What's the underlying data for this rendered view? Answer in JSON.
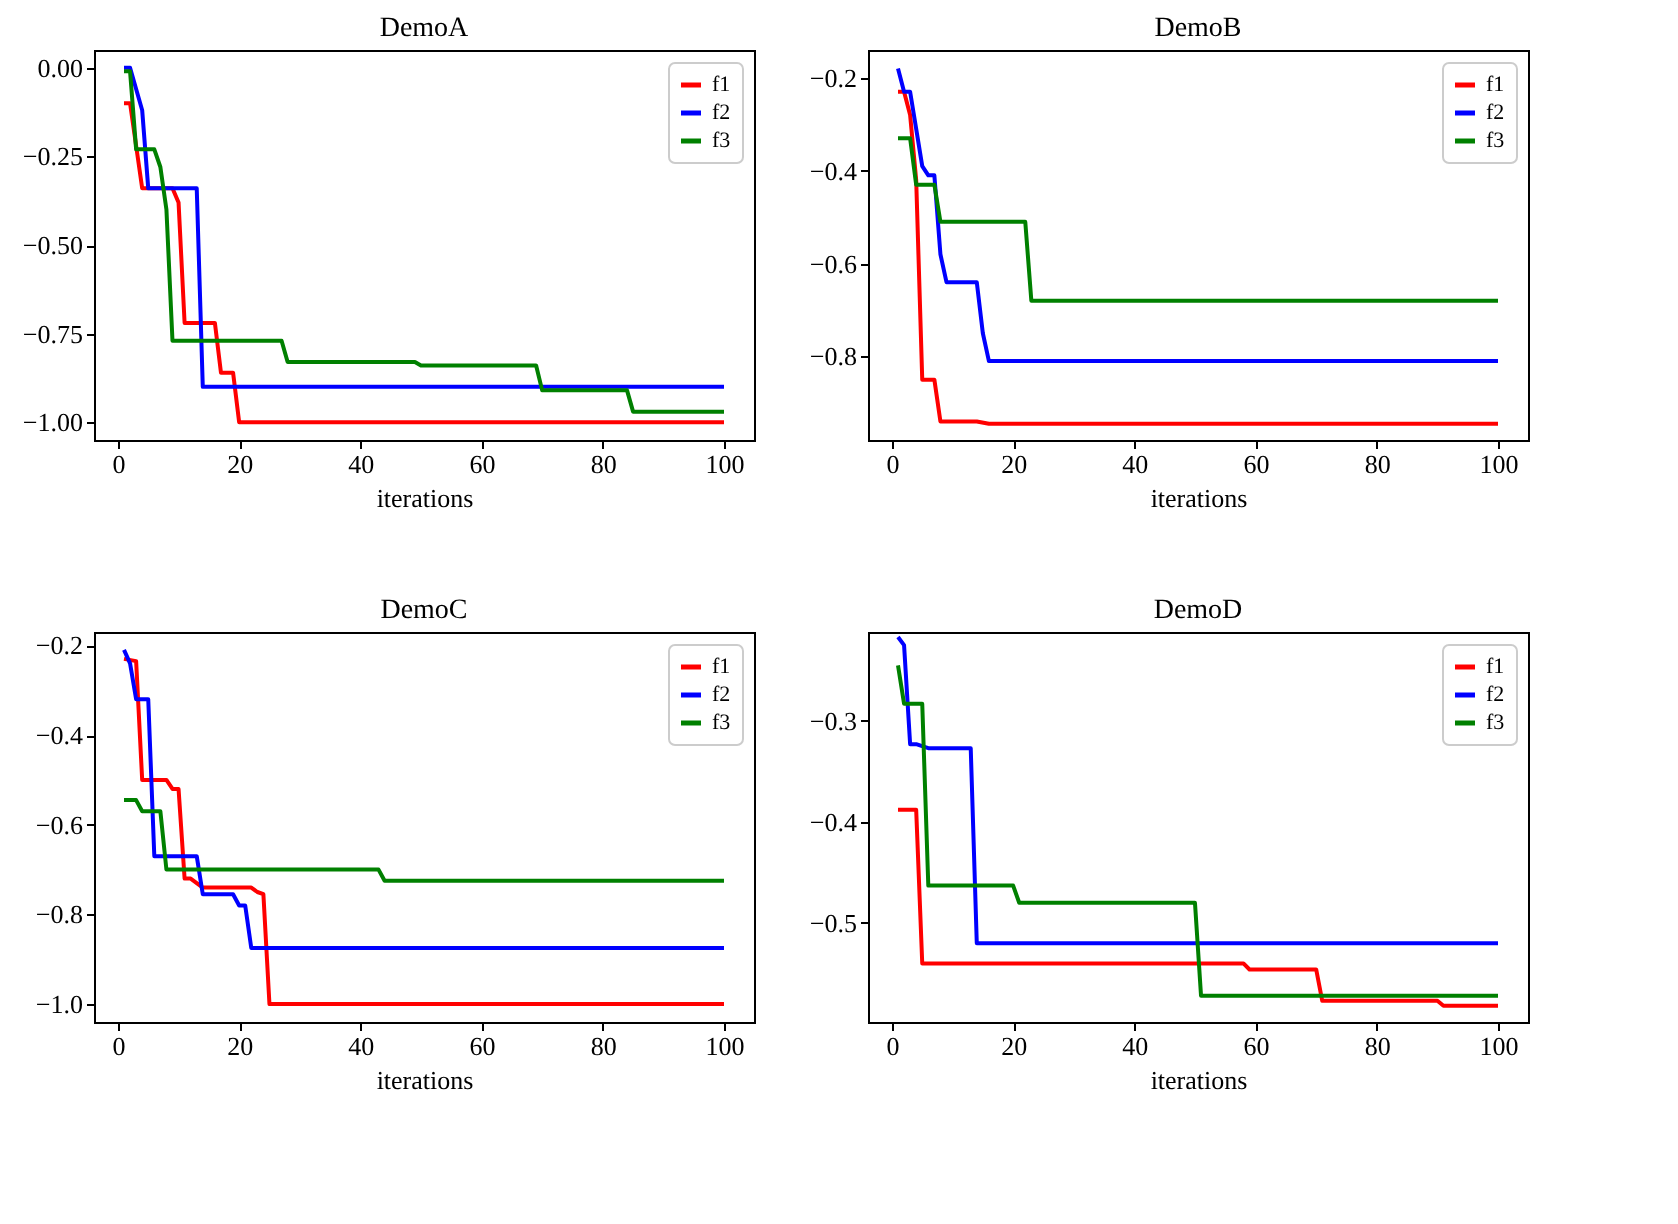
{
  "chart_data": [
    {
      "type": "line",
      "title": "DemoA",
      "xlabel": "iterations",
      "xlim": [
        -3.95,
        104.95
      ],
      "xticks": [
        0,
        20,
        40,
        60,
        80,
        100
      ],
      "ylim": [
        -1.05,
        0.05
      ],
      "yticks": [
        {
          "value": 0,
          "label": "0.00"
        },
        {
          "value": -0.25,
          "label": "−0.25"
        },
        {
          "value": -0.5,
          "label": "−0.50"
        },
        {
          "value": -0.75,
          "label": "−0.75"
        },
        {
          "value": -1,
          "label": "−1.00"
        }
      ],
      "grid": false,
      "legend": "top right",
      "marker": "none",
      "line_style": "solid",
      "series": [
        {
          "name": "f1",
          "color": "#ff0000",
          "x": [
            1,
            2,
            4,
            9,
            10,
            11,
            16,
            17,
            19,
            20,
            100
          ],
          "values": [
            -0.1,
            -0.1,
            -0.34,
            -0.34,
            -0.38,
            -0.72,
            -0.72,
            -0.86,
            -0.86,
            -1.0,
            -1.0
          ]
        },
        {
          "name": "f2",
          "color": "#0000ff",
          "x": [
            1,
            2,
            4,
            5,
            13,
            14,
            100
          ],
          "values": [
            0,
            0,
            -0.12,
            -0.34,
            -0.34,
            -0.9,
            -0.9
          ]
        },
        {
          "name": "f3",
          "color": "#008000",
          "x": [
            1,
            2,
            3,
            6,
            7,
            8,
            9,
            27,
            28,
            49,
            50,
            69,
            70,
            84,
            85,
            100
          ],
          "values": [
            -0.01,
            -0.01,
            -0.23,
            -0.23,
            -0.28,
            -0.4,
            -0.77,
            -0.77,
            -0.83,
            -0.83,
            -0.84,
            -0.84,
            -0.91,
            -0.91,
            -0.97,
            -0.97
          ]
        }
      ]
    },
    {
      "type": "line",
      "title": "DemoB",
      "xlabel": "iterations",
      "xlim": [
        -3.95,
        104.95
      ],
      "xticks": [
        0,
        20,
        40,
        60,
        80,
        100
      ],
      "ylim": [
        -0.98,
        -0.14
      ],
      "yticks": [
        {
          "value": -0.2,
          "label": "−0.2"
        },
        {
          "value": -0.4,
          "label": "−0.4"
        },
        {
          "value": -0.6,
          "label": "−0.6"
        },
        {
          "value": -0.8,
          "label": "−0.8"
        }
      ],
      "grid": false,
      "legend": "top right",
      "marker": "none",
      "line_style": "solid",
      "series": [
        {
          "name": "f1",
          "color": "#ff0000",
          "x": [
            1,
            2,
            3,
            4,
            5,
            7,
            8,
            14,
            16,
            100
          ],
          "values": [
            -0.23,
            -0.23,
            -0.28,
            -0.42,
            -0.85,
            -0.85,
            -0.94,
            -0.94,
            -0.945,
            -0.945
          ]
        },
        {
          "name": "f2",
          "color": "#0000ff",
          "x": [
            1,
            2,
            3,
            4,
            5,
            6,
            7,
            8,
            9,
            14,
            15,
            16,
            100
          ],
          "values": [
            -0.18,
            -0.23,
            -0.23,
            -0.31,
            -0.39,
            -0.41,
            -0.41,
            -0.58,
            -0.64,
            -0.64,
            -0.75,
            -0.81,
            -0.81
          ]
        },
        {
          "name": "f3",
          "color": "#008000",
          "x": [
            1,
            3,
            4,
            7,
            8,
            22,
            23,
            100
          ],
          "values": [
            -0.33,
            -0.33,
            -0.43,
            -0.43,
            -0.51,
            -0.51,
            -0.68,
            -0.68
          ]
        }
      ]
    },
    {
      "type": "line",
      "title": "DemoC",
      "xlabel": "iterations",
      "xlim": [
        -3.95,
        104.95
      ],
      "xticks": [
        0,
        20,
        40,
        60,
        80,
        100
      ],
      "ylim": [
        -1.04,
        -0.17
      ],
      "yticks": [
        {
          "value": -0.2,
          "label": "−0.2"
        },
        {
          "value": -0.4,
          "label": "−0.4"
        },
        {
          "value": -0.6,
          "label": "−0.6"
        },
        {
          "value": -0.8,
          "label": "−0.8"
        },
        {
          "value": -1,
          "label": "−1.0"
        }
      ],
      "grid": false,
      "legend": "top right",
      "marker": "none",
      "line_style": "solid",
      "series": [
        {
          "name": "f1",
          "color": "#ff0000",
          "x": [
            1,
            3,
            4,
            8,
            9,
            10,
            11,
            12,
            14,
            22,
            23,
            24,
            25,
            100
          ],
          "values": [
            -0.23,
            -0.235,
            -0.5,
            -0.5,
            -0.52,
            -0.52,
            -0.72,
            -0.72,
            -0.74,
            -0.74,
            -0.75,
            -0.755,
            -1.0,
            -1.0
          ]
        },
        {
          "name": "f2",
          "color": "#0000ff",
          "x": [
            1,
            2,
            3,
            5,
            6,
            13,
            14,
            19,
            20,
            21,
            22,
            100
          ],
          "values": [
            -0.21,
            -0.24,
            -0.32,
            -0.32,
            -0.67,
            -0.67,
            -0.755,
            -0.755,
            -0.78,
            -0.78,
            -0.875,
            -0.875
          ]
        },
        {
          "name": "f3",
          "color": "#008000",
          "x": [
            1,
            3,
            4,
            7,
            8,
            43,
            44,
            100
          ],
          "values": [
            -0.545,
            -0.545,
            -0.57,
            -0.57,
            -0.7,
            -0.7,
            -0.725,
            -0.725
          ]
        }
      ]
    },
    {
      "type": "line",
      "title": "DemoD",
      "xlabel": "iterations",
      "xlim": [
        -3.95,
        104.95
      ],
      "xticks": [
        0,
        20,
        40,
        60,
        80,
        100
      ],
      "ylim": [
        -0.598,
        -0.212
      ],
      "yticks": [
        {
          "value": -0.3,
          "label": "−0.3"
        },
        {
          "value": -0.4,
          "label": "−0.4"
        },
        {
          "value": -0.5,
          "label": "−0.5"
        }
      ],
      "grid": false,
      "legend": "top right",
      "marker": "none",
      "line_style": "solid",
      "series": [
        {
          "name": "f1",
          "color": "#ff0000",
          "x": [
            1,
            4,
            5,
            58,
            59,
            70,
            71,
            90,
            91,
            100
          ],
          "values": [
            -0.388,
            -0.388,
            -0.54,
            -0.54,
            -0.546,
            -0.546,
            -0.577,
            -0.577,
            -0.582,
            -0.582
          ]
        },
        {
          "name": "f2",
          "color": "#0000ff",
          "x": [
            1,
            2,
            3,
            4,
            6,
            13,
            14,
            100
          ],
          "values": [
            -0.217,
            -0.225,
            -0.323,
            -0.323,
            -0.327,
            -0.327,
            -0.52,
            -0.52
          ]
        },
        {
          "name": "f3",
          "color": "#008000",
          "x": [
            1,
            2,
            5,
            6,
            20,
            21,
            50,
            51,
            100
          ],
          "values": [
            -0.245,
            -0.283,
            -0.283,
            -0.463,
            -0.463,
            -0.48,
            -0.48,
            -0.572,
            -0.572
          ]
        }
      ]
    }
  ]
}
